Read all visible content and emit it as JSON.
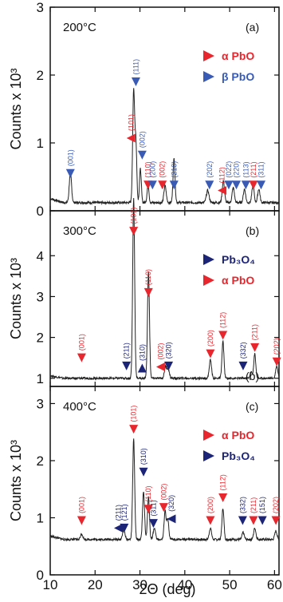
{
  "chart_data": {
    "type": "line",
    "xlabel": "2Θ (deg)",
    "xlim": [
      10,
      61
    ],
    "xticks": [
      "10",
      "20",
      "30",
      "40",
      "50",
      "60"
    ],
    "colors": {
      "alpha_PbO": "#e8262d",
      "beta_PbO": "#3a5bb5",
      "Pb3O4": "#1c2478",
      "trace": "#222222"
    },
    "panels": [
      {
        "temp": "200°C",
        "letter": "(a)",
        "ylabel": "Counts x 10³",
        "ylim": [
          0,
          3
        ],
        "yticks": [
          "0",
          "1",
          "2",
          "3"
        ],
        "legend": [
          {
            "label": "α PbO",
            "phase": "alpha"
          },
          {
            "label": "β PbO",
            "phase": "beta"
          }
        ],
        "baseline": 0.12,
        "peaks": [
          {
            "x": 14.5,
            "y": 0.45,
            "w": 0.25
          },
          {
            "x": 28.6,
            "y": 1.65,
            "w": 0.22
          },
          {
            "x": 29.1,
            "y": 0.85,
            "w": 0.2
          },
          {
            "x": 30.1,
            "y": 0.5,
            "w": 0.2
          },
          {
            "x": 31.8,
            "y": 0.28,
            "w": 0.2
          },
          {
            "x": 35.6,
            "y": 0.25,
            "w": 0.25
          },
          {
            "x": 37.6,
            "y": 0.65,
            "w": 0.22
          },
          {
            "x": 45.1,
            "y": 0.18,
            "w": 0.3
          },
          {
            "x": 48.6,
            "y": 0.32,
            "w": 0.25
          },
          {
            "x": 50.8,
            "y": 0.22,
            "w": 0.25
          },
          {
            "x": 53.3,
            "y": 0.2,
            "w": 0.25
          },
          {
            "x": 55.2,
            "y": 0.25,
            "w": 0.25
          },
          {
            "x": 56.5,
            "y": 0.2,
            "w": 0.25
          }
        ],
        "markers": [
          {
            "hkl": "(001)",
            "x": 14.5,
            "phase": "beta",
            "dir": "down",
            "y": 0.55
          },
          {
            "hkl": "(111)",
            "x": 29.1,
            "phase": "beta",
            "dir": "down",
            "y": 1.9
          },
          {
            "hkl": "(101)",
            "x": 28.0,
            "phase": "alpha",
            "dir": "left",
            "y": 1.07
          },
          {
            "hkl": "(002)",
            "x": 30.5,
            "phase": "beta",
            "dir": "down",
            "y": 0.82
          },
          {
            "hkl": "(110)",
            "x": 31.8,
            "phase": "alpha",
            "dir": "down",
            "y": 0.38
          },
          {
            "hkl": "(200)",
            "x": 32.8,
            "phase": "beta",
            "dir": "down",
            "y": 0.38
          },
          {
            "hkl": "(002)",
            "x": 35.0,
            "phase": "alpha",
            "dir": "down",
            "y": 0.38
          },
          {
            "hkl": "(210)",
            "x": 37.6,
            "phase": "beta",
            "dir": "down",
            "y": 0.38
          },
          {
            "hkl": "(202)",
            "x": 45.5,
            "phase": "beta",
            "dir": "down",
            "y": 0.38
          },
          {
            "hkl": "(112)",
            "x": 48.3,
            "phase": "alpha",
            "dir": "left",
            "y": 0.3
          },
          {
            "hkl": "(022)",
            "x": 49.8,
            "phase": "beta",
            "dir": "down",
            "y": 0.38
          },
          {
            "hkl": "(220)",
            "x": 51.5,
            "phase": "beta",
            "dir": "down",
            "y": 0.38
          },
          {
            "hkl": "(113)",
            "x": 53.6,
            "phase": "beta",
            "dir": "down",
            "y": 0.38
          },
          {
            "hkl": "(211)",
            "x": 55.3,
            "phase": "alpha",
            "dir": "down",
            "y": 0.38
          },
          {
            "hkl": "(311)",
            "x": 57.0,
            "phase": "beta",
            "dir": "down",
            "y": 0.38
          }
        ]
      },
      {
        "temp": "300°C",
        "letter": "(b)",
        "ylabel": "Counts x 10³",
        "ylim": [
          0.8,
          5.1
        ],
        "yticks": [
          "1",
          "2",
          "3",
          "4"
        ],
        "legend": [
          {
            "label": "Pb₃O₄",
            "phase": "pb3o4"
          },
          {
            "label": "α PbO",
            "phase": "alpha"
          }
        ],
        "baseline": 1.0,
        "peaks": [
          {
            "x": 28.6,
            "y": 4.4,
            "w": 0.22
          },
          {
            "x": 31.9,
            "y": 2.6,
            "w": 0.22
          },
          {
            "x": 35.7,
            "y": 0.28,
            "w": 0.25
          },
          {
            "x": 36.3,
            "y": 0.22,
            "w": 0.25
          },
          {
            "x": 45.7,
            "y": 0.45,
            "w": 0.25
          },
          {
            "x": 48.5,
            "y": 0.9,
            "w": 0.22
          },
          {
            "x": 54.8,
            "y": 0.15,
            "w": 0.25
          },
          {
            "x": 55.6,
            "y": 0.6,
            "w": 0.22
          },
          {
            "x": 60.5,
            "y": 0.3,
            "w": 0.25
          }
        ],
        "markers": [
          {
            "hkl": "(001)",
            "x": 17.0,
            "phase": "alpha",
            "dir": "down",
            "y": 1.5
          },
          {
            "hkl": "(211)",
            "x": 27.0,
            "phase": "pb3o4",
            "dir": "down",
            "y": 1.3
          },
          {
            "hkl": "(101)",
            "x": 28.6,
            "phase": "alpha",
            "dir": "down",
            "y": 4.6
          },
          {
            "hkl": "(310)",
            "x": 30.5,
            "phase": "pb3o4",
            "dir": "up",
            "y": 1.25
          },
          {
            "hkl": "(110)",
            "x": 31.9,
            "phase": "alpha",
            "dir": "down",
            "y": 3.1
          },
          {
            "hkl": "(002)",
            "x": 34.6,
            "phase": "alpha",
            "dir": "left",
            "y": 1.28
          },
          {
            "hkl": "(320)",
            "x": 36.4,
            "phase": "pb3o4",
            "dir": "down",
            "y": 1.3
          },
          {
            "hkl": "(200)",
            "x": 45.7,
            "phase": "alpha",
            "dir": "down",
            "y": 1.6
          },
          {
            "hkl": "(112)",
            "x": 48.5,
            "phase": "alpha",
            "dir": "down",
            "y": 2.05
          },
          {
            "hkl": "(332)",
            "x": 53.0,
            "phase": "pb3o4",
            "dir": "down",
            "y": 1.3
          },
          {
            "hkl": "(211)",
            "x": 55.6,
            "phase": "alpha",
            "dir": "down",
            "y": 1.75
          },
          {
            "hkl": "(202)",
            "x": 60.5,
            "phase": "alpha",
            "dir": "down",
            "y": 1.4
          }
        ]
      },
      {
        "temp": "400°C",
        "letter": "(c)",
        "ylabel": "Counts x 10³",
        "ylim": [
          0,
          3.3
        ],
        "yticks": [
          "0",
          "1",
          "2",
          "3"
        ],
        "legend": [
          {
            "label": "α PbO",
            "phase": "alpha"
          },
          {
            "label": "Pb₃O₄",
            "phase": "pb3o4"
          }
        ],
        "top_letter": "(b)",
        "baseline": 0.62,
        "peaks": [
          {
            "x": 17.0,
            "y": 0.1,
            "w": 0.25
          },
          {
            "x": 26.4,
            "y": 0.18,
            "w": 0.25
          },
          {
            "x": 28.6,
            "y": 1.75,
            "w": 0.22
          },
          {
            "x": 30.8,
            "y": 0.85,
            "w": 0.22
          },
          {
            "x": 31.9,
            "y": 0.75,
            "w": 0.22
          },
          {
            "x": 33.2,
            "y": 0.2,
            "w": 0.25
          },
          {
            "x": 35.6,
            "y": 0.5,
            "w": 0.22
          },
          {
            "x": 36.2,
            "y": 0.35,
            "w": 0.22
          },
          {
            "x": 45.7,
            "y": 0.2,
            "w": 0.25
          },
          {
            "x": 48.5,
            "y": 0.55,
            "w": 0.22
          },
          {
            "x": 53.0,
            "y": 0.12,
            "w": 0.25
          },
          {
            "x": 55.6,
            "y": 0.2,
            "w": 0.25
          },
          {
            "x": 60.3,
            "y": 0.15,
            "w": 0.25
          }
        ],
        "markers": [
          {
            "hkl": "(001)",
            "x": 17.0,
            "phase": "alpha",
            "dir": "down",
            "y": 0.95
          },
          {
            "hkl": "(211)",
            "x": 25.2,
            "phase": "pb3o4",
            "dir": "left",
            "y": 0.82
          },
          {
            "hkl": "(121)",
            "x": 26.5,
            "phase": "pb3o4",
            "dir": "down",
            "y": 0.82
          },
          {
            "hkl": "(101)",
            "x": 28.6,
            "phase": "alpha",
            "dir": "down",
            "y": 2.55
          },
          {
            "hkl": "(310)",
            "x": 30.8,
            "phase": "pb3o4",
            "dir": "down",
            "y": 1.8
          },
          {
            "hkl": "(110)",
            "x": 31.9,
            "phase": "alpha",
            "dir": "down",
            "y": 1.15
          },
          {
            "hkl": "(311)",
            "x": 33.0,
            "phase": "pb3o4",
            "dir": "down",
            "y": 0.9
          },
          {
            "hkl": "(002)",
            "x": 35.3,
            "phase": "alpha",
            "dir": "down",
            "y": 1.18
          },
          {
            "hkl": "(320)",
            "x": 37.0,
            "phase": "pb3o4",
            "dir": "left",
            "y": 0.98
          },
          {
            "hkl": "(200)",
            "x": 45.7,
            "phase": "alpha",
            "dir": "down",
            "y": 0.95
          },
          {
            "hkl": "(112)",
            "x": 48.5,
            "phase": "alpha",
            "dir": "down",
            "y": 1.35
          },
          {
            "hkl": "(332)",
            "x": 52.9,
            "phase": "pb3o4",
            "dir": "down",
            "y": 0.95
          },
          {
            "hkl": "(211)",
            "x": 55.3,
            "phase": "alpha",
            "dir": "down",
            "y": 0.95
          },
          {
            "hkl": "(151)",
            "x": 57.3,
            "phase": "pb3o4",
            "dir": "down",
            "y": 0.95
          },
          {
            "hkl": "(202)",
            "x": 60.3,
            "phase": "alpha",
            "dir": "down",
            "y": 0.95
          }
        ]
      }
    ]
  }
}
